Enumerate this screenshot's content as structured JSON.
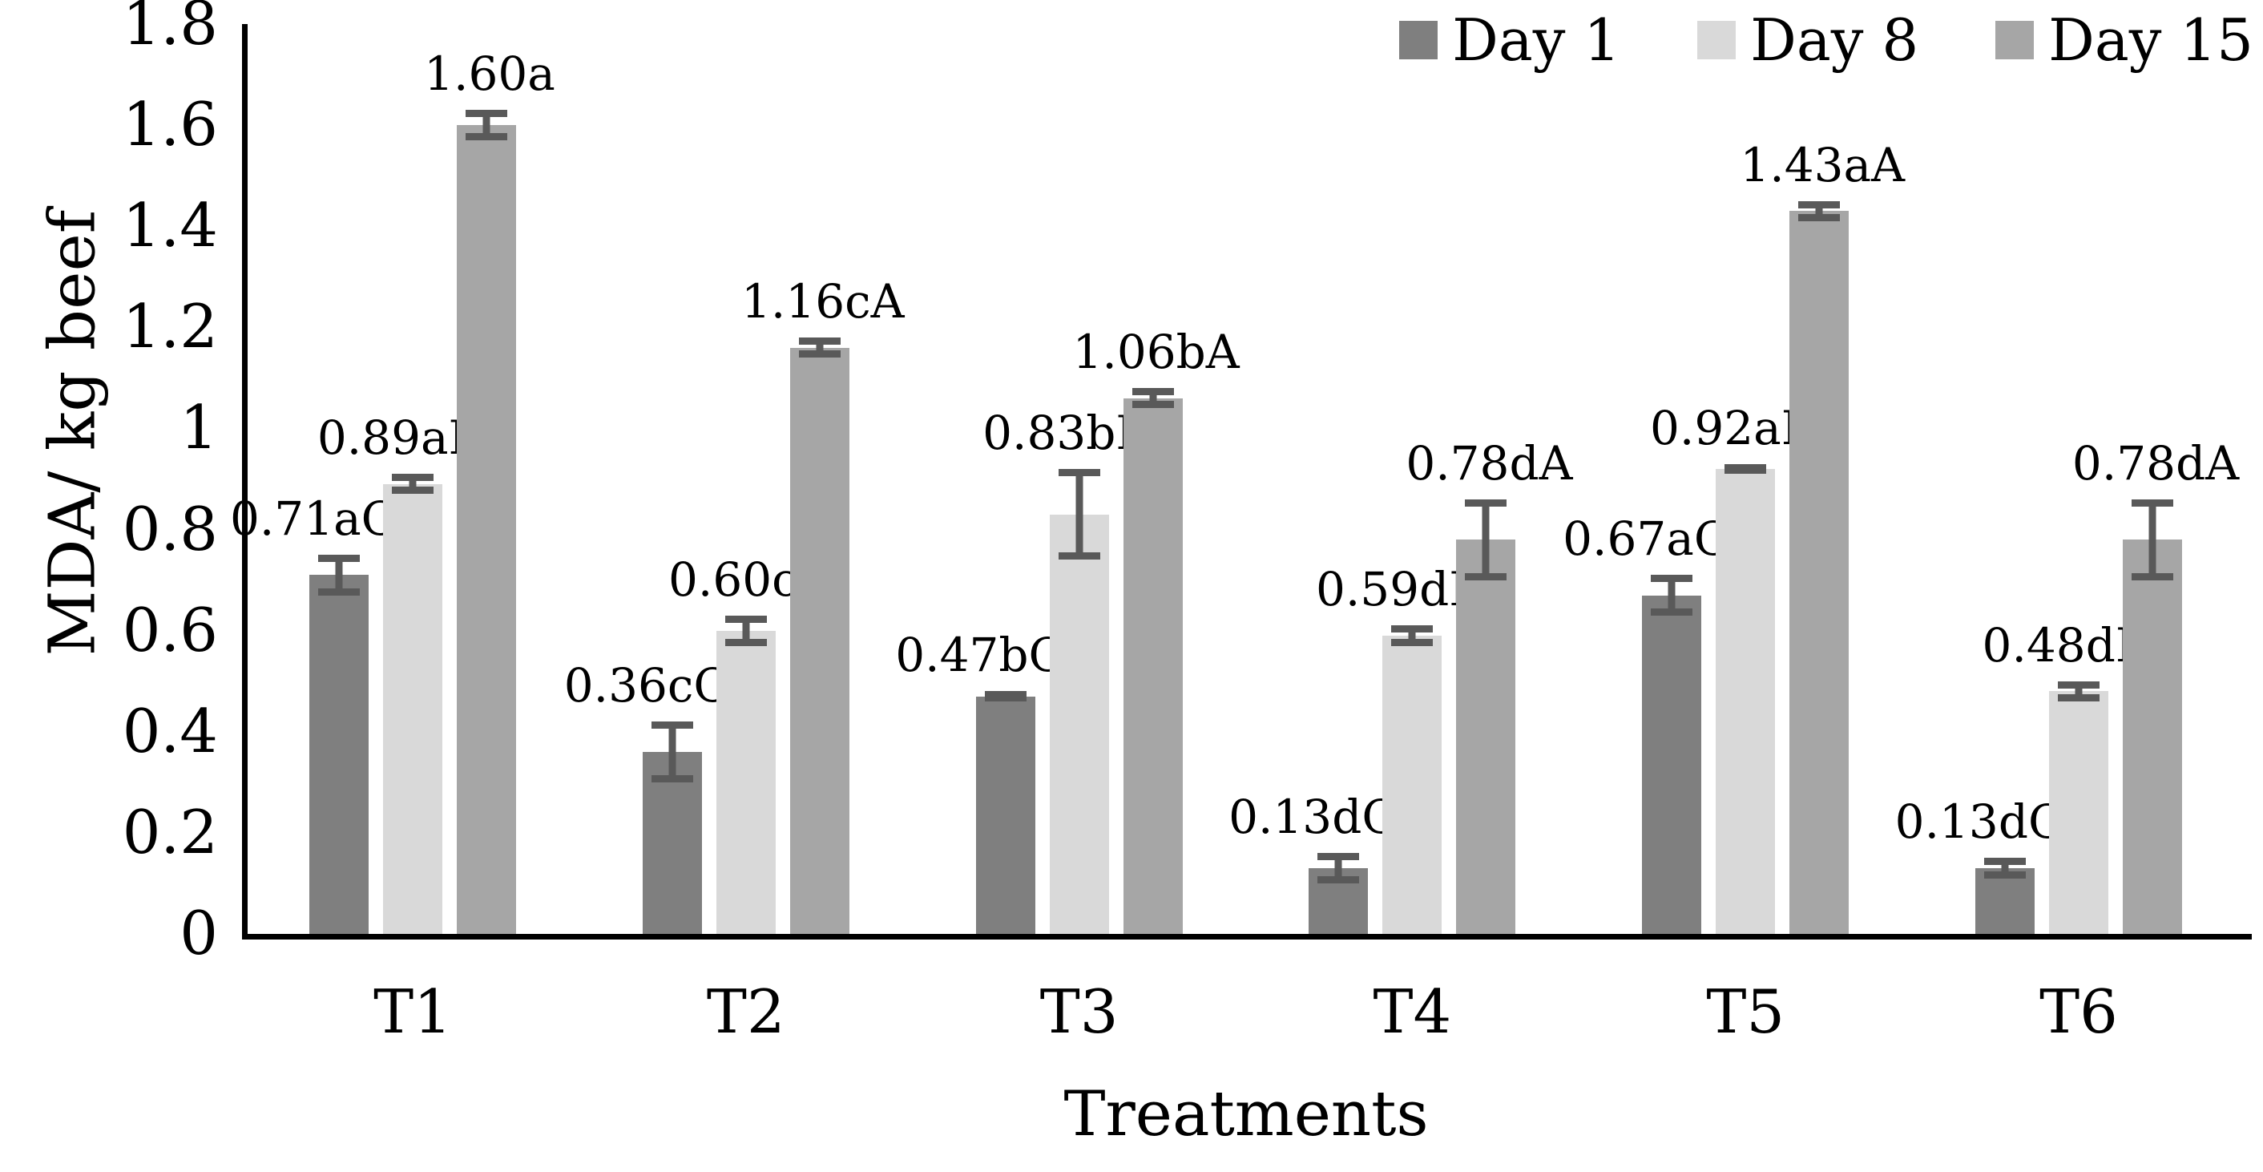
{
  "figure": {
    "background": "#ffffff",
    "axis_color": "#000000",
    "error_bar_color": "#595959"
  },
  "chart_data": {
    "type": "bar",
    "title": "",
    "xlabel": "Treatments",
    "ylabel": "MDA/ kg beef",
    "ylim": [
      0,
      1.8
    ],
    "ytick_labels": [
      "0",
      "0.2",
      "0.4",
      "0.6",
      "0.8",
      "1",
      "1.2",
      "1.4",
      "1.6",
      "1.8"
    ],
    "ytick_values": [
      0,
      0.2,
      0.4,
      0.6,
      0.8,
      1.0,
      1.2,
      1.4,
      1.6,
      1.8
    ],
    "categories": [
      "T1",
      "T2",
      "T3",
      "T4",
      "T5",
      "T6"
    ],
    "grid": false,
    "legend_position": "top-right",
    "series": [
      {
        "name": "Day 1",
        "color": "#7f7f7f",
        "values": [
          0.71,
          0.36,
          0.47,
          0.13,
          0.67,
          0.13
        ],
        "labels": [
          "0.71aC",
          "0.36cC",
          "0.47bC",
          "0.13dC",
          "0.67aC",
          "0.13dC"
        ],
        "errors": [
          0.04,
          0.06,
          0.01,
          0.03,
          0.04,
          0.02
        ]
      },
      {
        "name": "Day 8",
        "color": "#d9d9d9",
        "values": [
          0.89,
          0.6,
          0.83,
          0.59,
          0.92,
          0.48
        ],
        "labels": [
          "0.89aB",
          "0.60c",
          "0.83bB",
          "0.59dB",
          "0.92aB",
          "0.48dB"
        ],
        "errors": [
          0.02,
          0.03,
          0.09,
          0.02,
          0.01,
          0.02
        ]
      },
      {
        "name": "Day 15",
        "color": "#a6a6a6",
        "values": [
          1.6,
          1.16,
          1.06,
          0.78,
          1.43,
          0.78
        ],
        "labels": [
          "1.60a",
          "1.16cA",
          "1.06bA",
          "0.78dA",
          "1.43aA",
          "0.78dA"
        ],
        "errors": [
          0.03,
          0.02,
          0.02,
          0.08,
          0.02,
          0.08
        ]
      }
    ]
  }
}
